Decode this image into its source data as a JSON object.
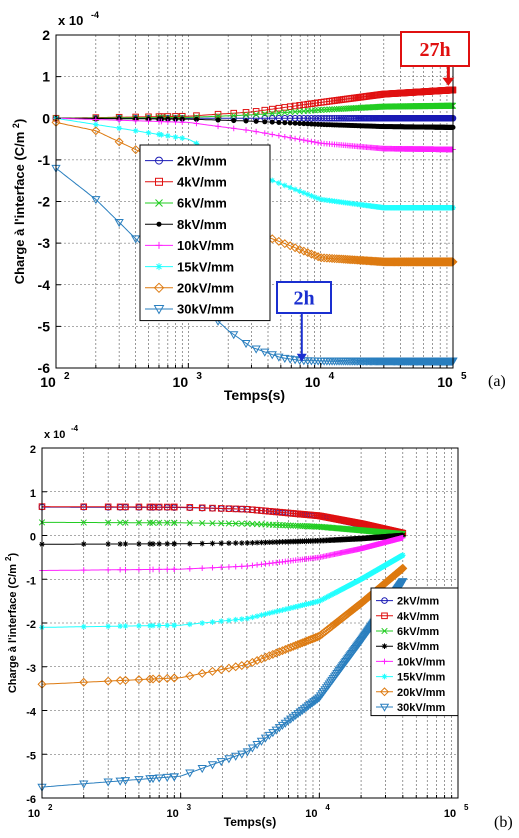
{
  "panel_labels": [
    "(a)",
    "(b)"
  ],
  "chart_data": [
    {
      "type": "line",
      "panel": "(a)",
      "title": "",
      "xlabel": "Temps(s)",
      "ylabel": "Charge à l'interface (C/m 2)",
      "x_scale": "log",
      "xlim": [
        100,
        100000
      ],
      "ylim": [
        -6,
        2
      ],
      "y_multiplier": "x 10-4",
      "xticks": [
        "10^2",
        "10^3",
        "10^4",
        "10^5"
      ],
      "yticks": [
        "-6",
        "-5",
        "-4",
        "-3",
        "-2",
        "-1",
        "0",
        "1",
        "2"
      ],
      "grid": true,
      "legend_position": "center-left",
      "annotations": [
        {
          "text": "27h",
          "color": "#e01010",
          "at_x": 97200
        },
        {
          "text": "2h",
          "color": "#1a2fd0",
          "at_x": 7200
        }
      ],
      "series": [
        {
          "name": "2kV/mm",
          "color": "#1a1ab4",
          "marker": "circle",
          "points": [
            [
              100,
              0.0
            ],
            [
              1000,
              0.0
            ],
            [
              10000,
              0.0
            ],
            [
              100000,
              0.0
            ]
          ]
        },
        {
          "name": "4kV/mm",
          "color": "#e01010",
          "marker": "square",
          "points": [
            [
              100,
              0.0
            ],
            [
              1000,
              0.05
            ],
            [
              3000,
              0.15
            ],
            [
              10000,
              0.38
            ],
            [
              30000,
              0.58
            ],
            [
              100000,
              0.68
            ]
          ]
        },
        {
          "name": "6kV/mm",
          "color": "#22cc22",
          "marker": "x",
          "points": [
            [
              100,
              0.0
            ],
            [
              1000,
              0.02
            ],
            [
              3000,
              0.08
            ],
            [
              10000,
              0.2
            ],
            [
              30000,
              0.28
            ],
            [
              100000,
              0.3
            ]
          ]
        },
        {
          "name": "8kV/mm",
          "color": "#000000",
          "marker": "dot",
          "points": [
            [
              100,
              0.0
            ],
            [
              1000,
              -0.02
            ],
            [
              3000,
              -0.07
            ],
            [
              10000,
              -0.15
            ],
            [
              30000,
              -0.2
            ],
            [
              100000,
              -0.22
            ]
          ]
        },
        {
          "name": "10kV/mm",
          "color": "#ff22ff",
          "marker": "plus",
          "points": [
            [
              100,
              0.0
            ],
            [
              1000,
              -0.1
            ],
            [
              3000,
              -0.3
            ],
            [
              10000,
              -0.6
            ],
            [
              30000,
              -0.73
            ],
            [
              100000,
              -0.75
            ]
          ]
        },
        {
          "name": "15kV/mm",
          "color": "#22ffff",
          "marker": "star",
          "points": [
            [
              100,
              0.0
            ],
            [
              1000,
              -0.5
            ],
            [
              3000,
              -1.3
            ],
            [
              10000,
              -1.95
            ],
            [
              30000,
              -2.15
            ],
            [
              100000,
              -2.15
            ]
          ]
        },
        {
          "name": "20kV/mm",
          "color": "#dd7a10",
          "marker": "diamond",
          "points": [
            [
              100,
              -0.1
            ],
            [
              200,
              -0.3
            ],
            [
              500,
              -0.9
            ],
            [
              1000,
              -1.6
            ],
            [
              3000,
              -2.7
            ],
            [
              10000,
              -3.35
            ],
            [
              30000,
              -3.45
            ],
            [
              100000,
              -3.45
            ]
          ]
        },
        {
          "name": "30kV/mm",
          "color": "#2a7fbf",
          "marker": "triangle-down",
          "points": [
            [
              100,
              -1.2
            ],
            [
              200,
              -1.95
            ],
            [
              300,
              -2.5
            ],
            [
              500,
              -3.2
            ],
            [
              1000,
              -4.2
            ],
            [
              2000,
              -5.1
            ],
            [
              3000,
              -5.5
            ],
            [
              5000,
              -5.75
            ],
            [
              7200,
              -5.82
            ],
            [
              10000,
              -5.83
            ],
            [
              100000,
              -5.83
            ]
          ]
        }
      ]
    },
    {
      "type": "line",
      "panel": "(b)",
      "title": "",
      "xlabel": "Temps(s)",
      "ylabel": "Charge à l'interface (C/m 2)",
      "x_scale": "log",
      "xlim": [
        100,
        100000
      ],
      "ylim": [
        -6,
        2
      ],
      "y_multiplier": "x 10-4",
      "xticks": [
        "10^2",
        "10^3",
        "10^4",
        "10^5"
      ],
      "yticks": [
        "-6",
        "-5",
        "-4",
        "-3",
        "-2",
        "-1",
        "0",
        "1",
        "2"
      ],
      "grid": true,
      "legend_position": "bottom-right",
      "series": [
        {
          "name": "2kV/mm",
          "color": "#1a1ab4",
          "marker": "circle",
          "points": [
            [
              100,
              0.65
            ],
            [
              1000,
              0.64
            ],
            [
              3000,
              0.6
            ],
            [
              10000,
              0.45
            ],
            [
              20000,
              0.25
            ],
            [
              40000,
              0.05
            ]
          ]
        },
        {
          "name": "4kV/mm",
          "color": "#e01010",
          "marker": "square",
          "points": [
            [
              100,
              0.66
            ],
            [
              1000,
              0.65
            ],
            [
              3000,
              0.6
            ],
            [
              10000,
              0.45
            ],
            [
              20000,
              0.27
            ],
            [
              40000,
              0.05
            ]
          ]
        },
        {
          "name": "6kV/mm",
          "color": "#22cc22",
          "marker": "x",
          "points": [
            [
              100,
              0.3
            ],
            [
              1000,
              0.29
            ],
            [
              3000,
              0.27
            ],
            [
              10000,
              0.2
            ],
            [
              20000,
              0.12
            ],
            [
              40000,
              0.03
            ]
          ]
        },
        {
          "name": "8kV/mm",
          "color": "#000000",
          "marker": "star",
          "points": [
            [
              100,
              -0.2
            ],
            [
              1000,
              -0.19
            ],
            [
              3000,
              -0.17
            ],
            [
              10000,
              -0.12
            ],
            [
              20000,
              -0.07
            ],
            [
              40000,
              0.0
            ]
          ]
        },
        {
          "name": "10kV/mm",
          "color": "#ff22ff",
          "marker": "plus",
          "points": [
            [
              100,
              -0.8
            ],
            [
              1000,
              -0.77
            ],
            [
              3000,
              -0.7
            ],
            [
              10000,
              -0.5
            ],
            [
              20000,
              -0.3
            ],
            [
              40000,
              -0.05
            ]
          ]
        },
        {
          "name": "15kV/mm",
          "color": "#22ffff",
          "marker": "star",
          "points": [
            [
              100,
              -2.1
            ],
            [
              1000,
              -2.05
            ],
            [
              3000,
              -1.9
            ],
            [
              10000,
              -1.5
            ],
            [
              20000,
              -1.0
            ],
            [
              40000,
              -0.45
            ]
          ]
        },
        {
          "name": "20kV/mm",
          "color": "#dd7a10",
          "marker": "diamond",
          "points": [
            [
              100,
              -3.4
            ],
            [
              1000,
              -3.25
            ],
            [
              3000,
              -2.95
            ],
            [
              10000,
              -2.3
            ],
            [
              20000,
              -1.55
            ],
            [
              40000,
              -0.75
            ]
          ]
        },
        {
          "name": "30kV/mm",
          "color": "#2a7fbf",
          "marker": "triangle-down",
          "points": [
            [
              100,
              -5.75
            ],
            [
              1000,
              -5.5
            ],
            [
              3000,
              -4.95
            ],
            [
              10000,
              -3.7
            ],
            [
              20000,
              -2.4
            ],
            [
              40000,
              -1.05
            ]
          ]
        }
      ]
    }
  ]
}
